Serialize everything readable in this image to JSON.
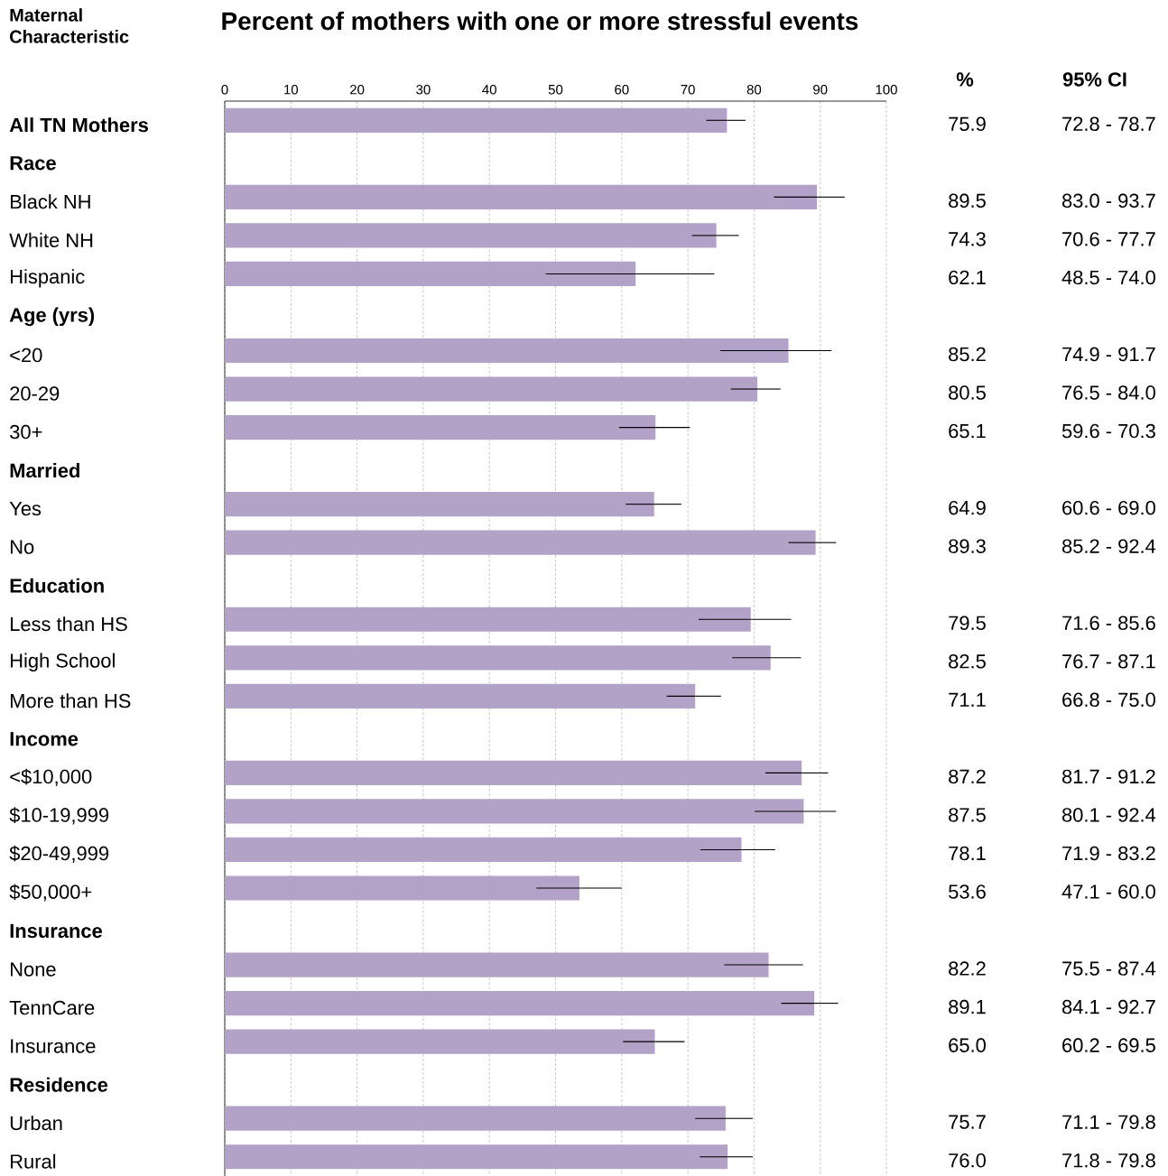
{
  "chart_data": {
    "type": "bar",
    "orientation": "horizontal",
    "title": "Percent of mothers with one or more stressful events",
    "ylabel": "Maternal Characteristic",
    "categories": [
      "All TN Mothers",
      "Race",
      "Black NH",
      "White NH",
      "Hispanic",
      "Age (yrs)",
      "<20",
      "20-29",
      "30+",
      "Married",
      "Yes",
      "No",
      "Education",
      "Less than HS",
      "High School",
      "More than HS",
      "Income",
      "<$10,000",
      "$10-19,999",
      "$20-49,999",
      "$50,000+",
      "Insurance",
      "None",
      "TennCare",
      "Insurance",
      "Residence",
      "Urban",
      "Rural"
    ],
    "values": [
      75.9,
      null,
      89.5,
      74.3,
      62.1,
      null,
      85.2,
      80.5,
      65.1,
      null,
      64.9,
      89.3,
      null,
      79.5,
      82.5,
      71.1,
      null,
      87.2,
      87.5,
      78.1,
      53.6,
      null,
      82.2,
      89.1,
      65.0,
      null,
      75.7,
      76.0
    ],
    "errors": [
      [
        72.8,
        78.7
      ],
      null,
      [
        83.0,
        93.7
      ],
      [
        70.6,
        77.7
      ],
      [
        48.5,
        74.0
      ],
      null,
      [
        74.9,
        91.7
      ],
      [
        76.5,
        84.0
      ],
      [
        59.6,
        70.3
      ],
      null,
      [
        60.6,
        69.0
      ],
      [
        85.2,
        92.4
      ],
      null,
      [
        71.6,
        85.6
      ],
      [
        76.7,
        87.1
      ],
      [
        66.8,
        75.0
      ],
      null,
      [
        81.7,
        91.2
      ],
      [
        80.1,
        92.4
      ],
      [
        71.9,
        83.2
      ],
      [
        47.1,
        60.0
      ],
      null,
      [
        75.5,
        87.4
      ],
      [
        84.1,
        92.7
      ],
      [
        60.2,
        69.5
      ],
      null,
      [
        71.1,
        79.8
      ],
      [
        71.8,
        79.8
      ]
    ],
    "color": "#b3a2c8",
    "xlim": [
      0,
      100
    ],
    "xticks": [
      0,
      10,
      20,
      30,
      40,
      50,
      60,
      70,
      80,
      90,
      100
    ],
    "grid": "x",
    "annotations": [
      "%",
      "95% CI",
      "75.9",
      "72.8 - 78.7",
      "89.5",
      "83.0 - 93.7",
      "74.3",
      "70.6 - 77.7",
      "62.1",
      "48.5 - 74.0",
      "85.2",
      "74.9 - 91.7",
      "80.5",
      "76.5 - 84.0",
      "65.1",
      "59.6 - 70.3",
      "64.9",
      "60.6 - 69.0",
      "89.3",
      "85.2 - 92.4",
      "79.5",
      "71.6 - 85.6",
      "82.5",
      "76.7 - 87.1",
      "71.1",
      "66.8 - 75.0",
      "87.2",
      "81.7 - 91.2",
      "87.5",
      "80.1 - 92.4",
      "78.1",
      "71.9 - 83.2",
      "53.6",
      "47.1 - 60.0",
      "82.2",
      "75.5 - 87.4",
      "89.1",
      "84.1 - 92.7",
      "65.0",
      "60.2 - 69.5",
      "75.7",
      "71.1 - 79.8",
      "76.0",
      "71.8 - 79.8"
    ]
  }
}
